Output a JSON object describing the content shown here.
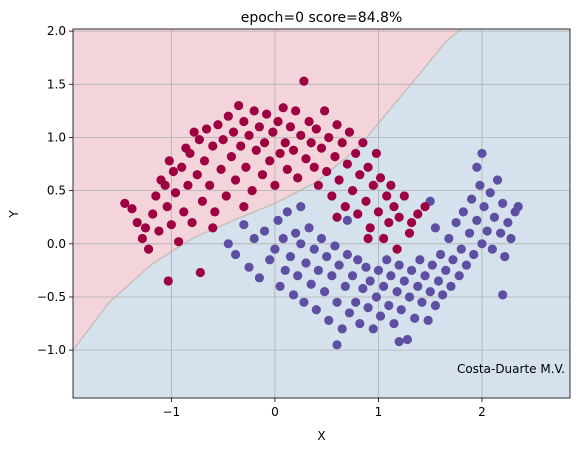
{
  "chart_data": {
    "type": "scatter",
    "title": "epoch=0 score=84.8%",
    "xlabel": "X",
    "ylabel": "Y",
    "xlim": [
      -1.95,
      2.85
    ],
    "ylim": [
      -1.45,
      2.02
    ],
    "xticks": [
      -1,
      0,
      1,
      2
    ],
    "xtick_labels": [
      "−1",
      "0",
      "1",
      "2"
    ],
    "yticks": [
      -1.0,
      -0.5,
      0.0,
      0.5,
      1.0,
      1.5,
      2.0
    ],
    "ytick_labels": [
      "−1.0",
      "−0.5",
      "0.0",
      "0.5",
      "1.0",
      "1.5",
      "2.0"
    ],
    "grid": true,
    "annotation": "Costa-Duarte M.V.",
    "colors": {
      "class_a": "#9e0142",
      "class_b": "#5e4fa2",
      "region_a": "#f2d4da",
      "region_b": "#d5e2ee",
      "boundary": "#c8c0b8"
    },
    "decision_boundary": [
      [
        -1.95,
        -1.0
      ],
      [
        -1.6,
        -0.55
      ],
      [
        -1.2,
        -0.2
      ],
      [
        -0.8,
        0.05
      ],
      [
        -0.4,
        0.22
      ],
      [
        0.0,
        0.38
      ],
      [
        0.4,
        0.58
      ],
      [
        0.8,
        0.9
      ],
      [
        1.1,
        1.25
      ],
      [
        1.4,
        1.6
      ],
      [
        1.65,
        1.9
      ],
      [
        1.8,
        2.02
      ]
    ],
    "series": [
      {
        "points": [
          [
            -1.45,
            0.38
          ],
          [
            -1.38,
            0.33
          ],
          [
            -1.33,
            0.2
          ],
          [
            -1.28,
            0.05
          ],
          [
            -1.25,
            0.15
          ],
          [
            -1.22,
            -0.05
          ],
          [
            -1.18,
            0.28
          ],
          [
            -1.15,
            0.45
          ],
          [
            -1.12,
            0.12
          ],
          [
            -1.1,
            0.6
          ],
          [
            -1.06,
            0.55
          ],
          [
            -1.04,
            0.35
          ],
          [
            -1.02,
            0.78
          ],
          [
            -1.0,
            0.18
          ],
          [
            -0.98,
            0.68
          ],
          [
            -0.96,
            0.48
          ],
          [
            -0.93,
            0.02
          ],
          [
            -0.9,
            0.72
          ],
          [
            -0.88,
            0.3
          ],
          [
            -0.86,
            0.9
          ],
          [
            -0.84,
            0.55
          ],
          [
            -0.82,
            0.85
          ],
          [
            -0.8,
            0.2
          ],
          [
            -0.78,
            1.05
          ],
          [
            -0.75,
            0.65
          ],
          [
            -0.73,
            0.98
          ],
          [
            -0.7,
            0.4
          ],
          [
            -0.68,
            0.78
          ],
          [
            -0.66,
            1.08
          ],
          [
            -0.63,
            0.55
          ],
          [
            -0.6,
            0.92
          ],
          [
            -0.58,
            0.3
          ],
          [
            -0.55,
            1.12
          ],
          [
            -0.52,
            0.7
          ],
          [
            -0.5,
            0.98
          ],
          [
            -0.47,
            0.45
          ],
          [
            -0.45,
            1.2
          ],
          [
            -0.42,
            0.82
          ],
          [
            -0.4,
            1.05
          ],
          [
            -0.38,
            0.6
          ],
          [
            -0.35,
            1.3
          ],
          [
            -0.33,
            0.92
          ],
          [
            -0.3,
            1.15
          ],
          [
            -0.28,
            0.72
          ],
          [
            -0.25,
            1.02
          ],
          [
            -0.22,
            0.5
          ],
          [
            -0.2,
            1.25
          ],
          [
            -0.18,
            0.88
          ],
          [
            -0.15,
            1.1
          ],
          [
            -0.12,
            0.65
          ],
          [
            -0.1,
            0.95
          ],
          [
            -0.08,
            1.22
          ],
          [
            -0.05,
            0.78
          ],
          [
            -0.02,
            1.05
          ],
          [
            0.0,
            0.55
          ],
          [
            0.03,
            1.15
          ],
          [
            0.05,
            0.85
          ],
          [
            0.08,
            1.28
          ],
          [
            0.1,
            0.95
          ],
          [
            0.12,
            0.7
          ],
          [
            0.15,
            1.1
          ],
          [
            0.18,
            0.88
          ],
          [
            0.2,
            1.25
          ],
          [
            0.22,
            0.62
          ],
          [
            0.25,
            1.02
          ],
          [
            0.28,
            1.53
          ],
          [
            0.3,
            0.8
          ],
          [
            0.33,
            1.15
          ],
          [
            0.35,
            0.95
          ],
          [
            0.38,
            0.72
          ],
          [
            0.4,
            1.08
          ],
          [
            0.42,
            0.55
          ],
          [
            0.45,
            0.9
          ],
          [
            0.48,
            1.25
          ],
          [
            0.5,
            0.68
          ],
          [
            0.52,
            1.0
          ],
          [
            0.55,
            0.45
          ],
          [
            0.58,
            0.82
          ],
          [
            0.6,
            1.12
          ],
          [
            0.62,
            0.6
          ],
          [
            0.65,
            0.95
          ],
          [
            0.68,
            0.35
          ],
          [
            0.7,
            0.75
          ],
          [
            0.72,
            1.05
          ],
          [
            0.75,
            0.5
          ],
          [
            0.78,
            0.85
          ],
          [
            0.8,
            0.28
          ],
          [
            0.82,
            0.65
          ],
          [
            0.85,
            0.95
          ],
          [
            0.88,
            0.4
          ],
          [
            0.9,
            0.72
          ],
          [
            0.92,
            0.15
          ],
          [
            0.95,
            0.55
          ],
          [
            0.98,
            0.85
          ],
          [
            1.0,
            0.3
          ],
          [
            1.02,
            0.62
          ],
          [
            1.05,
            0.05
          ],
          [
            1.08,
            0.45
          ],
          [
            1.1,
            0.2
          ],
          [
            1.12,
            0.55
          ],
          [
            1.15,
            0.35
          ],
          [
            1.18,
            -0.05
          ],
          [
            1.2,
            0.25
          ],
          [
            1.25,
            0.45
          ],
          [
            1.3,
            0.1
          ],
          [
            1.38,
            0.28
          ],
          [
            1.45,
            0.35
          ],
          [
            -0.72,
            -0.27
          ],
          [
            -1.03,
            -0.35
          ],
          [
            1.32,
            0.2
          ],
          [
            -0.6,
            0.15
          ],
          [
            -0.3,
            0.35
          ],
          [
            0.6,
            0.25
          ],
          [
            0.9,
            0.05
          ]
        ]
      },
      {
        "points": [
          [
            -0.45,
            0.0
          ],
          [
            -0.38,
            -0.1
          ],
          [
            -0.3,
            0.18
          ],
          [
            -0.25,
            -0.22
          ],
          [
            -0.2,
            0.05
          ],
          [
            -0.15,
            -0.32
          ],
          [
            -0.1,
            0.12
          ],
          [
            -0.05,
            -0.15
          ],
          [
            0.0,
            -0.05
          ],
          [
            0.03,
            0.22
          ],
          [
            0.05,
            -0.4
          ],
          [
            0.08,
            0.05
          ],
          [
            0.1,
            -0.25
          ],
          [
            0.12,
            0.3
          ],
          [
            0.15,
            -0.12
          ],
          [
            0.18,
            -0.48
          ],
          [
            0.2,
            0.1
          ],
          [
            0.22,
            -0.3
          ],
          [
            0.25,
            0.0
          ],
          [
            0.28,
            -0.55
          ],
          [
            0.3,
            -0.18
          ],
          [
            0.33,
            0.15
          ],
          [
            0.35,
            -0.38
          ],
          [
            0.38,
            -0.05
          ],
          [
            0.4,
            -0.62
          ],
          [
            0.42,
            -0.25
          ],
          [
            0.45,
            0.05
          ],
          [
            0.48,
            -0.45
          ],
          [
            0.5,
            -0.12
          ],
          [
            0.52,
            -0.72
          ],
          [
            0.55,
            -0.3
          ],
          [
            0.58,
            -0.02
          ],
          [
            0.6,
            -0.55
          ],
          [
            0.62,
            -0.2
          ],
          [
            0.65,
            -0.8
          ],
          [
            0.68,
            -0.4
          ],
          [
            0.7,
            -0.1
          ],
          [
            0.72,
            -0.65
          ],
          [
            0.75,
            -0.3
          ],
          [
            0.78,
            -0.55
          ],
          [
            0.8,
            -0.15
          ],
          [
            0.82,
            -0.75
          ],
          [
            0.85,
            -0.42
          ],
          [
            0.88,
            -0.22
          ],
          [
            0.9,
            -0.6
          ],
          [
            0.92,
            -0.35
          ],
          [
            0.95,
            -0.8
          ],
          [
            0.98,
            -0.5
          ],
          [
            1.0,
            -0.25
          ],
          [
            1.02,
            -0.68
          ],
          [
            1.05,
            -0.4
          ],
          [
            1.08,
            -0.15
          ],
          [
            1.1,
            -0.58
          ],
          [
            1.12,
            -0.3
          ],
          [
            1.15,
            -0.75
          ],
          [
            1.18,
            -0.45
          ],
          [
            1.2,
            -0.2
          ],
          [
            1.22,
            -0.62
          ],
          [
            1.25,
            -0.35
          ],
          [
            1.28,
            -0.9
          ],
          [
            1.3,
            -0.5
          ],
          [
            1.32,
            -0.25
          ],
          [
            1.35,
            -0.7
          ],
          [
            1.38,
            -0.4
          ],
          [
            1.4,
            -0.15
          ],
          [
            1.42,
            -0.55
          ],
          [
            1.45,
            -0.3
          ],
          [
            1.48,
            -0.72
          ],
          [
            1.5,
            -0.45
          ],
          [
            1.52,
            -0.2
          ],
          [
            1.55,
            -0.58
          ],
          [
            1.58,
            -0.35
          ],
          [
            1.6,
            -0.1
          ],
          [
            1.62,
            -0.48
          ],
          [
            1.65,
            -0.25
          ],
          [
            1.68,
            0.05
          ],
          [
            1.7,
            -0.4
          ],
          [
            1.72,
            -0.15
          ],
          [
            1.75,
            0.2
          ],
          [
            1.78,
            -0.3
          ],
          [
            1.8,
            -0.05
          ],
          [
            1.82,
            0.3
          ],
          [
            1.85,
            -0.2
          ],
          [
            1.88,
            0.1
          ],
          [
            1.9,
            0.42
          ],
          [
            1.92,
            -0.1
          ],
          [
            1.95,
            0.22
          ],
          [
            1.98,
            0.55
          ],
          [
            2.0,
            0.0
          ],
          [
            2.02,
            0.35
          ],
          [
            2.05,
            0.12
          ],
          [
            2.08,
            0.48
          ],
          [
            2.1,
            -0.05
          ],
          [
            2.12,
            0.25
          ],
          [
            2.15,
            0.6
          ],
          [
            2.18,
            0.1
          ],
          [
            2.2,
            0.38
          ],
          [
            2.22,
            -0.12
          ],
          [
            2.25,
            0.2
          ],
          [
            2.28,
            0.05
          ],
          [
            2.32,
            0.3
          ],
          [
            2.35,
            0.35
          ],
          [
            2.0,
            0.85
          ],
          [
            1.95,
            0.72
          ],
          [
            2.2,
            -0.48
          ],
          [
            1.5,
            0.4
          ],
          [
            1.55,
            0.15
          ],
          [
            0.7,
            0.22
          ],
          [
            0.25,
            0.35
          ],
          [
            1.2,
            -0.92
          ],
          [
            0.6,
            -0.95
          ]
        ]
      }
    ]
  }
}
